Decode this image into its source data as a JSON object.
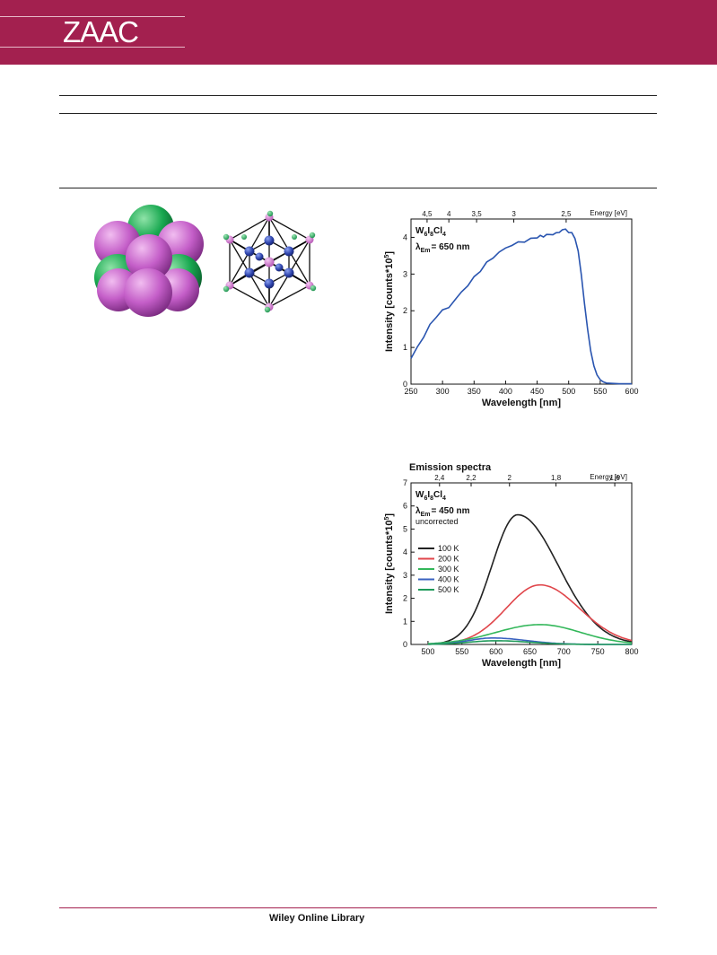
{
  "header": {
    "journal_logo": "ZAAC",
    "band_color": "#a3204f"
  },
  "footer": {
    "text": "Wiley Online Library"
  },
  "figures": {
    "space_filling_model": {
      "description_icons": [
        "pink-sphere-icon",
        "green-sphere-icon"
      ],
      "colors": {
        "pink": "#c45ec8",
        "green": "#18a850"
      }
    },
    "ball_and_stick_model": {
      "colors": {
        "blue": "#2a3fa8",
        "pink": "#d36bd0",
        "green": "#1daa5a"
      }
    }
  },
  "chart_data": [
    {
      "type": "line",
      "title": "",
      "xlabel": "Wavelength [nm]",
      "ylabel": "Intensity [counts*10^5]",
      "ylabel_base": "Intensity [counts*10",
      "ylabel_sup": "5",
      "ylabel_end": "]",
      "top_axis_label": "Energy [eV]",
      "xlim": [
        250,
        600
      ],
      "ylim": [
        0,
        4.5
      ],
      "xticks": [
        250,
        300,
        350,
        400,
        450,
        500,
        550,
        600
      ],
      "yticks": [
        0,
        1,
        2,
        3,
        4
      ],
      "top_ticks": [
        {
          "label": "4,5",
          "x_nm": 275.5
        },
        {
          "label": "4",
          "x_nm": 310
        },
        {
          "label": "3,5",
          "x_nm": 354
        },
        {
          "label": "3",
          "x_nm": 413
        },
        {
          "label": "2,5",
          "x_nm": 496
        }
      ],
      "annotations": {
        "compound_base": "W",
        "compound_s1": "6",
        "compound_m1": "I",
        "compound_s2": "8",
        "compound_m2": "Cl",
        "compound_s3": "4",
        "lambda_symbol": "λ",
        "lambda_sub": "Em",
        "lambda_value": "= 650 nm"
      },
      "series": [
        {
          "name": "",
          "color": "#2a55b0",
          "x": [
            250,
            260,
            270,
            280,
            290,
            300,
            310,
            320,
            330,
            340,
            350,
            360,
            370,
            380,
            390,
            400,
            410,
            420,
            430,
            440,
            450,
            455,
            460,
            465,
            470,
            475,
            480,
            485,
            490,
            495,
            500,
            505,
            510,
            515,
            520,
            525,
            530,
            535,
            540,
            545,
            550,
            555,
            560,
            570,
            580,
            590,
            600
          ],
          "y": [
            0.7,
            1.0,
            1.3,
            1.6,
            1.85,
            2.0,
            2.1,
            2.3,
            2.5,
            2.7,
            2.9,
            3.1,
            3.3,
            3.45,
            3.6,
            3.7,
            3.8,
            3.85,
            3.9,
            3.95,
            4.0,
            4.05,
            4.0,
            4.1,
            4.05,
            4.1,
            4.1,
            4.15,
            4.2,
            4.22,
            4.15,
            4.1,
            4.0,
            3.6,
            3.0,
            2.2,
            1.5,
            0.9,
            0.5,
            0.25,
            0.12,
            0.06,
            0.03,
            0.02,
            0.01,
            0.01,
            0.01
          ]
        }
      ]
    },
    {
      "type": "line",
      "title": "Emission spectra",
      "xlabel": "Wavelength [nm]",
      "ylabel": "Intensity [counts*10^5]",
      "ylabel_base": "Intensity [counts*10",
      "ylabel_sup": "5",
      "ylabel_end": "]",
      "top_axis_label": "Energy [eV]",
      "xlim": [
        475,
        800
      ],
      "ylim": [
        0,
        7
      ],
      "xticks": [
        500,
        550,
        600,
        650,
        700,
        750,
        800
      ],
      "yticks": [
        0,
        1,
        2,
        3,
        4,
        5,
        6,
        7
      ],
      "top_ticks": [
        {
          "label": "2,4",
          "x_nm": 517
        },
        {
          "label": "2,2",
          "x_nm": 563.5
        },
        {
          "label": "2",
          "x_nm": 620
        },
        {
          "label": "1,8",
          "x_nm": 688.5
        },
        {
          "label": "1,6",
          "x_nm": 775
        }
      ],
      "annotations": {
        "compound_base": "W",
        "compound_s1": "6",
        "compound_m1": "I",
        "compound_s2": "8",
        "compound_m2": "Cl",
        "compound_s3": "4",
        "lambda_symbol": "λ",
        "lambda_sub": "Em",
        "lambda_value": "= 450 nm",
        "note": "uncorrected"
      },
      "series": [
        {
          "name": "100 K",
          "color": "#222222",
          "peak_nm": 632,
          "peak": 5.62,
          "width_left": 38,
          "width_right": 60
        },
        {
          "name": "200 K",
          "color": "#e0464b",
          "peak_nm": 665,
          "peak": 2.58,
          "width_left": 50,
          "width_right": 58
        },
        {
          "name": "300 K",
          "color": "#33b75a",
          "peak_nm": 665,
          "peak": 0.86,
          "width_left": 65,
          "width_right": 60
        },
        {
          "name": "400 K",
          "color": "#3a62c0",
          "peak_nm": 595,
          "peak": 0.28,
          "width_left": 35,
          "width_right": 50
        },
        {
          "name": "500 K",
          "color": "#1f9a5a",
          "peak_nm": 600,
          "peak": 0.16,
          "width_left": 40,
          "width_right": 50
        }
      ]
    }
  ]
}
